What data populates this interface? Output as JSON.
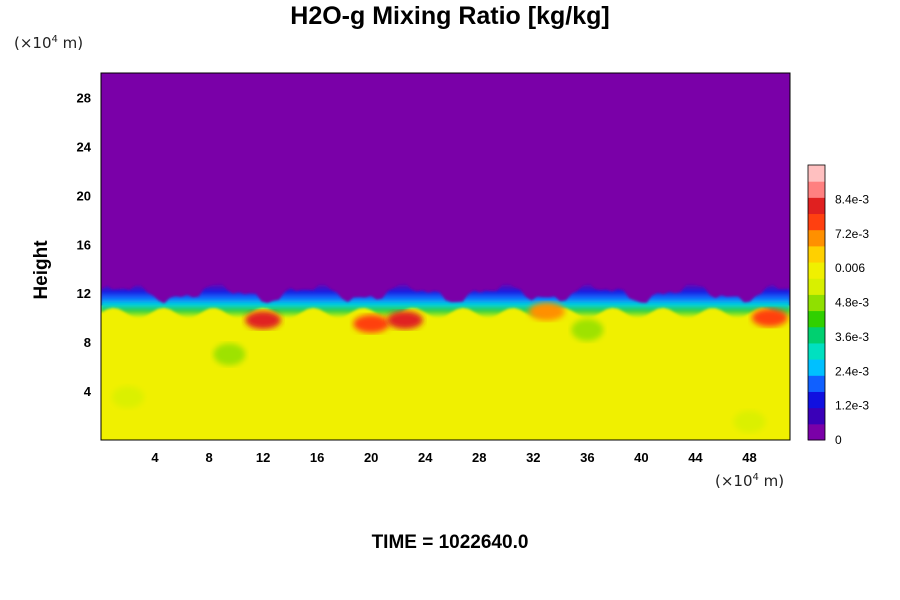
{
  "chart_data": {
    "type": "heatmap",
    "title": "H2O-g Mixing Ratio [kg/kg]",
    "ylabel": "Height",
    "xlabel": "",
    "x_unit_prefix": "(×10",
    "x_unit_exp": "4",
    "x_unit_suffix": " m)",
    "y_unit_prefix": "(×10",
    "y_unit_exp": "4",
    "y_unit_suffix": " m)",
    "xlim": [
      0,
      51
    ],
    "ylim": [
      0,
      30
    ],
    "x_ticks": [
      "4",
      "8",
      "12",
      "16",
      "20",
      "24",
      "28",
      "32",
      "36",
      "40",
      "44",
      "48"
    ],
    "y_ticks": [
      "4",
      "8",
      "12",
      "16",
      "20",
      "24",
      "28"
    ],
    "colorbar_labels": [
      "0",
      "1.2e-3",
      "2.4e-3",
      "3.6e-3",
      "4.8e-3",
      "0.006",
      "7.2e-3",
      "8.4e-3"
    ],
    "colorbar_range": [
      0,
      0.0096
    ],
    "field": {
      "upper_value": 0.0,
      "lower_value": 0.0062,
      "moist_layer_top": 11.0,
      "transition_top_range": [
        11.0,
        13.0
      ],
      "moist_patches": [
        {
          "x": 20.0,
          "y": 9.5,
          "value": 0.0078
        },
        {
          "x": 22.5,
          "y": 9.8,
          "value": 0.0082
        },
        {
          "x": 12.0,
          "y": 9.8,
          "value": 0.008
        },
        {
          "x": 33.0,
          "y": 10.5,
          "value": 0.0072
        },
        {
          "x": 49.5,
          "y": 10.0,
          "value": 0.0076
        }
      ],
      "dry_patches": [
        {
          "x": 9.5,
          "y": 7.0,
          "value": 0.005
        },
        {
          "x": 2.0,
          "y": 3.5,
          "value": 0.0055
        },
        {
          "x": 48.0,
          "y": 1.5,
          "value": 0.0055
        },
        {
          "x": 36.0,
          "y": 9.0,
          "value": 0.005
        }
      ]
    },
    "colors": {
      "dry": "#7a00a8",
      "moist": "#dff500",
      "colorbar": [
        "#7a00a8",
        "#3a00b8",
        "#1010e0",
        "#1060ff",
        "#00c0ff",
        "#00e0c0",
        "#00d070",
        "#30d000",
        "#90e000",
        "#d8f000",
        "#f0f000",
        "#ffd000",
        "#ff9000",
        "#ff4010",
        "#e02020",
        "#ff8080",
        "#ffc0c0"
      ]
    },
    "time_label": "TIME = 1022640.0"
  }
}
